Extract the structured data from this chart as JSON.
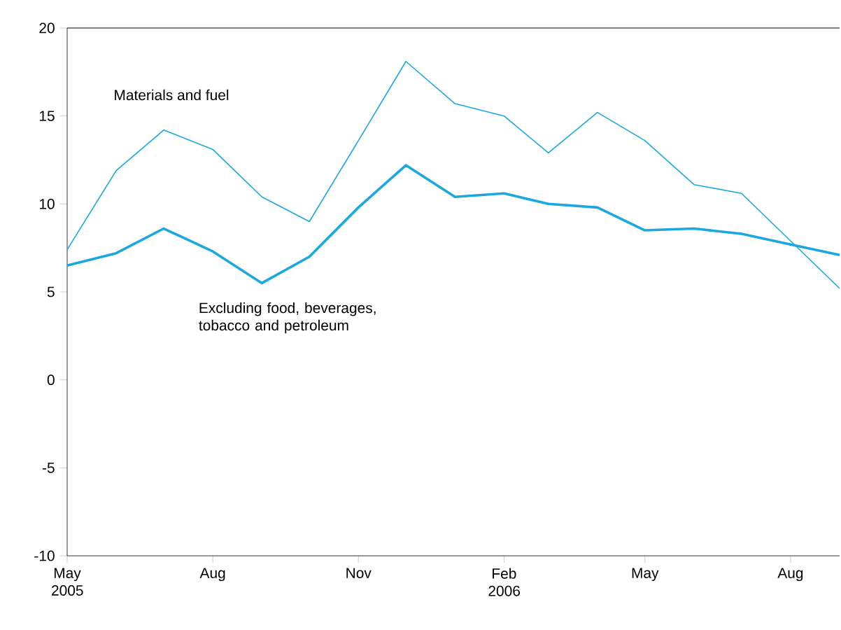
{
  "chart_data": {
    "type": "line",
    "x": [
      "2005-05",
      "2005-06",
      "2005-07",
      "2005-08",
      "2005-09",
      "2005-10",
      "2005-11",
      "2005-12",
      "2006-01",
      "2006-02",
      "2006-03",
      "2006-04",
      "2006-05",
      "2006-06",
      "2006-07",
      "2006-08",
      "2006-09"
    ],
    "series": [
      {
        "name": "Materials and fuel",
        "color": "#1ba8e0",
        "values": [
          7.4,
          11.9,
          14.2,
          13.1,
          10.4,
          9.0,
          13.6,
          18.1,
          15.7,
          15.0,
          12.9,
          15.2,
          13.6,
          11.1,
          10.6,
          7.9,
          5.2
        ]
      },
      {
        "name": "Excluding food, beverages, tobacco and petroleum",
        "color": "#1ba8e0",
        "values": [
          6.5,
          7.2,
          8.6,
          7.3,
          5.5,
          7.0,
          9.8,
          12.2,
          10.4,
          10.6,
          10.0,
          9.8,
          8.5,
          8.6,
          8.3,
          7.7,
          7.1
        ]
      }
    ],
    "xlim": [
      "2005-05",
      "2006-09"
    ],
    "xticks": [
      {
        "value": "2005-05",
        "label": "May 2005"
      },
      {
        "value": "2005-08",
        "label": "Aug"
      },
      {
        "value": "2005-11",
        "label": "Nov"
      },
      {
        "value": "2006-02",
        "label": "Feb 2006"
      },
      {
        "value": "2006-05",
        "label": "May"
      },
      {
        "value": "2006-08",
        "label": "Aug"
      }
    ],
    "ylim": [
      -10,
      20
    ],
    "yticks": [
      -10,
      -5,
      0,
      5,
      10,
      15,
      20
    ],
    "grid": false,
    "legend": false,
    "marker": "none"
  }
}
